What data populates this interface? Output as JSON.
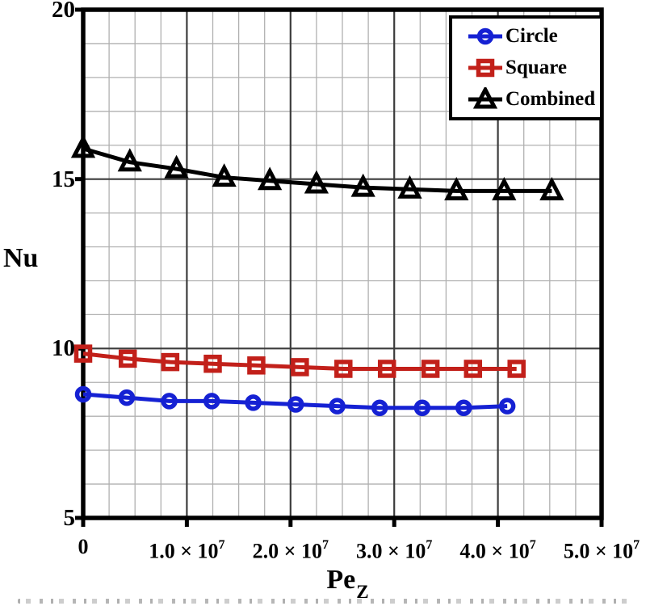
{
  "chart_data": {
    "type": "line",
    "title": "",
    "ylabel": "Nu",
    "xlabel_base": "Pe",
    "xlabel_sub": "Z",
    "x_values_unit": 10000000,
    "xlim": [
      0,
      5
    ],
    "ylim": [
      5,
      20
    ],
    "x_minor_step": 0.25,
    "y_minor_step": 1,
    "grid": "on",
    "legend_position": "top-right",
    "x_ticks": [
      {
        "v": 0,
        "base": "0",
        "sup": ""
      },
      {
        "v": 1,
        "base": "1.0 × 10",
        "sup": "7"
      },
      {
        "v": 2,
        "base": "2.0 × 10",
        "sup": "7"
      },
      {
        "v": 3,
        "base": "3.0 × 10",
        "sup": "7"
      },
      {
        "v": 4,
        "base": "4.0 × 10",
        "sup": "7"
      },
      {
        "v": 5,
        "base": "5.0 × 10",
        "sup": "7"
      }
    ],
    "y_ticks": [
      {
        "v": 5,
        "label": "5"
      },
      {
        "v": 10,
        "label": "10"
      },
      {
        "v": 15,
        "label": "15"
      },
      {
        "v": 20,
        "label": "20"
      }
    ],
    "series": [
      {
        "name": "Circle",
        "marker": "circle",
        "color": "#1521d3",
        "x": [
          0,
          0.42,
          0.83,
          1.24,
          1.64,
          2.05,
          2.45,
          2.86,
          3.27,
          3.67,
          4.09
        ],
        "y": [
          8.65,
          8.55,
          8.45,
          8.45,
          8.4,
          8.35,
          8.3,
          8.25,
          8.25,
          8.25,
          8.3
        ]
      },
      {
        "name": "Square",
        "marker": "square",
        "color": "#c2201a",
        "x": [
          0,
          0.43,
          0.84,
          1.25,
          1.67,
          2.09,
          2.51,
          2.93,
          3.35,
          3.76,
          4.18
        ],
        "y": [
          9.85,
          9.7,
          9.6,
          9.55,
          9.5,
          9.45,
          9.4,
          9.4,
          9.4,
          9.4,
          9.4
        ]
      },
      {
        "name": "Combined",
        "marker": "triangle",
        "color": "#000000",
        "x": [
          0,
          0.45,
          0.9,
          1.36,
          1.8,
          2.25,
          2.7,
          3.15,
          3.6,
          4.06,
          4.52
        ],
        "y": [
          15.9,
          15.5,
          15.3,
          15.05,
          14.95,
          14.85,
          14.75,
          14.7,
          14.65,
          14.65,
          14.65
        ]
      }
    ]
  },
  "styles": {
    "background": "#ffffff",
    "axis_color": "#000000",
    "minor_grid_color": "#b0b0b0",
    "major_grid_color": "#3c3c3c",
    "tick_label_color": "#000000"
  }
}
